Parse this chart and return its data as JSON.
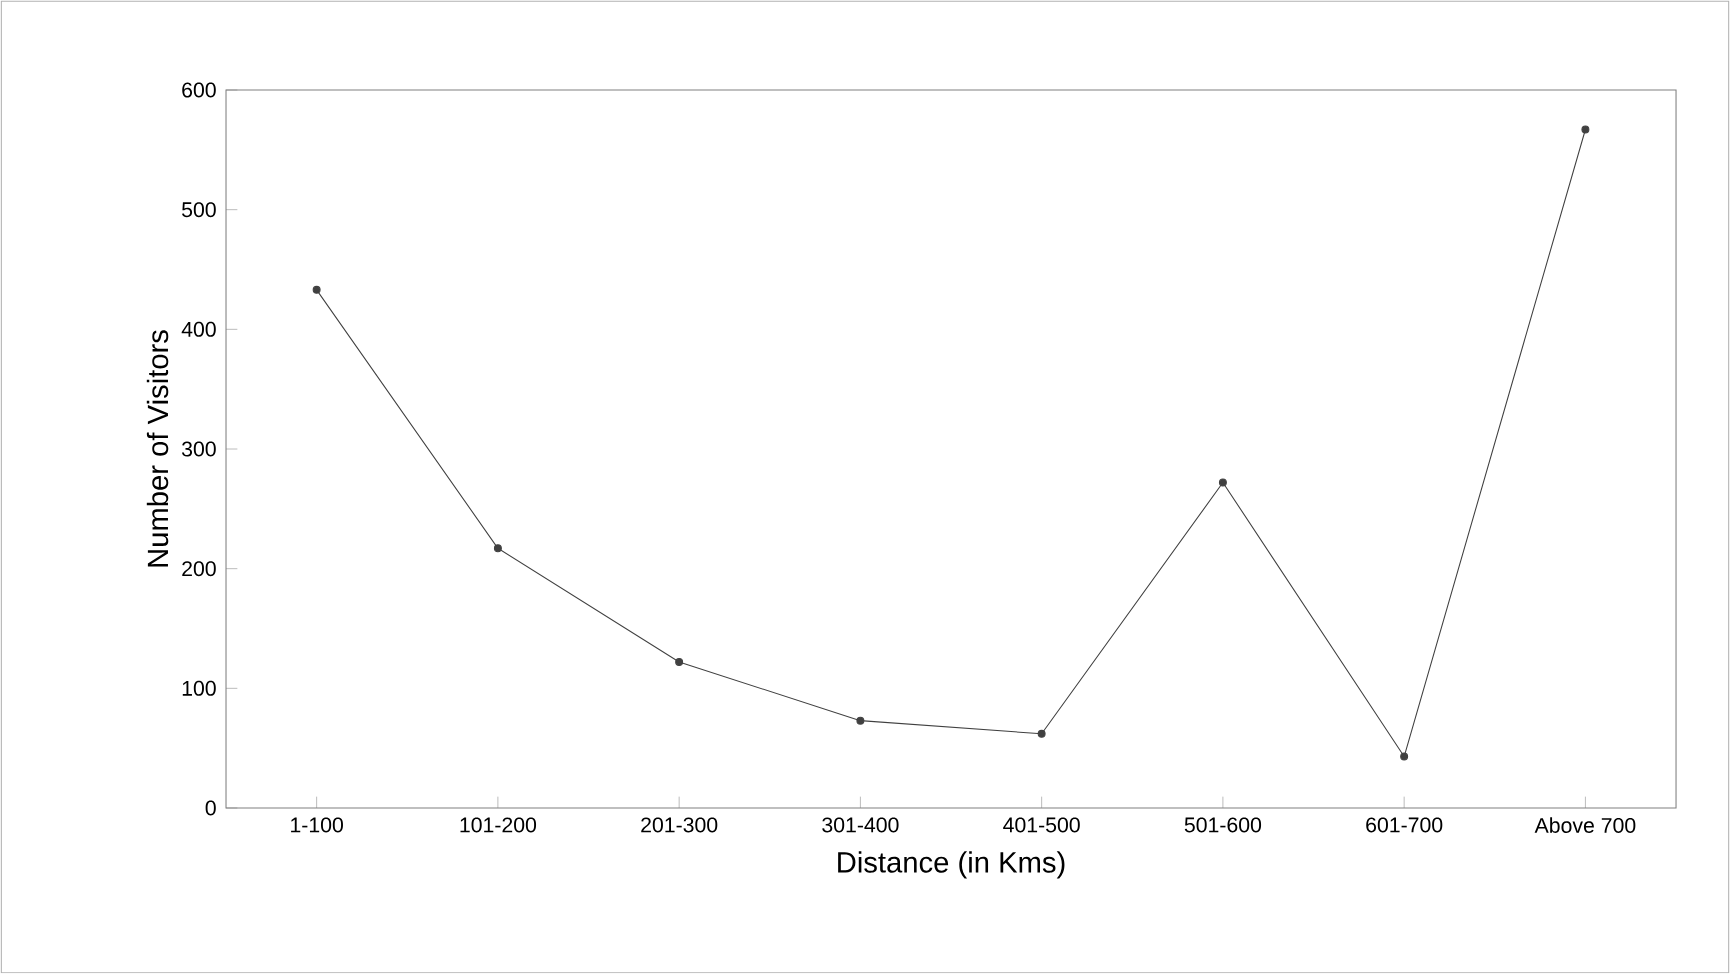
{
  "chart_data": {
    "type": "line",
    "xlabel": "Distance (in Kms)",
    "ylabel": "Number of Visitors",
    "categories": [
      "1-100",
      "101-200",
      "201-300",
      "301-400",
      "401-500",
      "501-600",
      "601-700",
      "Above 700"
    ],
    "series": [
      {
        "color": "#404040",
        "values": [
          433,
          217,
          122,
          73,
          62,
          272,
          43,
          567
        ]
      }
    ],
    "ylim": [
      0,
      600
    ],
    "yticks": [
      0,
      100,
      200,
      300,
      400,
      500,
      600
    ],
    "grid": false,
    "marker": "circle",
    "line_style": "solid"
  }
}
